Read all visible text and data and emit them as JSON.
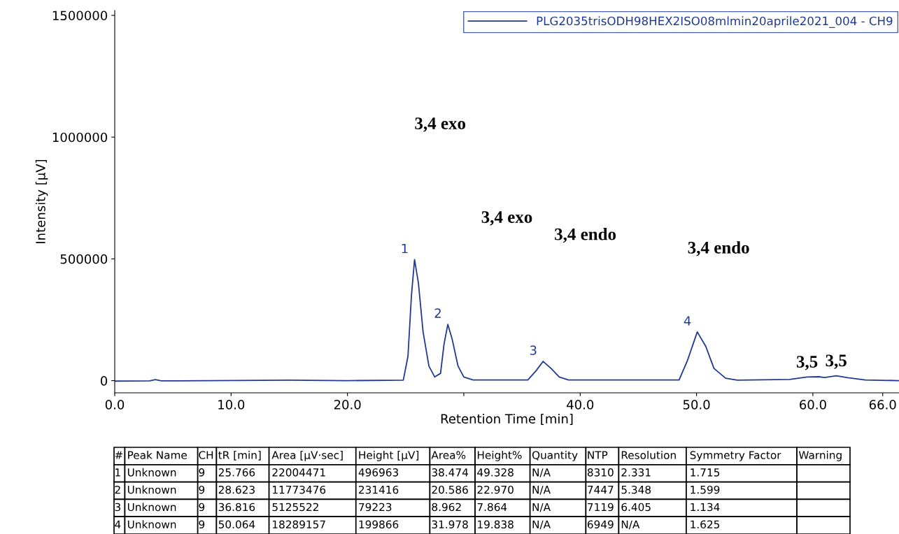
{
  "chart_data": {
    "type": "line",
    "xlabel": "Retention Time [min]",
    "ylabel": "Intensity [µV]",
    "xlim": [
      0,
      67.4
    ],
    "ylim": [
      -50000,
      1520000
    ],
    "xticks": [
      {
        "value": 0,
        "label": "0.0"
      },
      {
        "value": 10,
        "label": "10.0"
      },
      {
        "value": 20,
        "label": "20.0"
      },
      {
        "value": 30,
        "label": null
      },
      {
        "value": 40,
        "label": "40.0"
      },
      {
        "value": 50,
        "label": "50.0"
      },
      {
        "value": 60,
        "label": "60.0"
      },
      {
        "value": 66,
        "label": "66.0"
      }
    ],
    "yticks": [
      0,
      500000,
      1000000,
      1500000
    ],
    "grid": false,
    "legend": "top right",
    "marker": "none",
    "line_style": "solid",
    "series": [
      {
        "name": "PLG2035trisODH98HEX2ISO08mlmin20aprile2021_004 - CH9",
        "color": "#1f3a93",
        "x": [
          0,
          3.0,
          3.5,
          4.0,
          8,
          15,
          20,
          24.8,
          25.2,
          25.5,
          25.766,
          26.1,
          26.5,
          27.0,
          27.5,
          28.0,
          28.3,
          28.623,
          29.0,
          29.5,
          30.0,
          30.8,
          35.5,
          36.2,
          36.816,
          37.5,
          38.2,
          39.0,
          48.5,
          49.2,
          50.064,
          50.8,
          51.5,
          52.5,
          53.5,
          58.0,
          59.5,
          60.5,
          61.0,
          62.0,
          63.0,
          64.5,
          67.4
        ],
        "values": [
          -2000,
          -1000,
          4000,
          -1000,
          0,
          2000,
          0,
          2000,
          100000,
          350000,
          497000,
          400000,
          200000,
          60000,
          15000,
          30000,
          150000,
          231000,
          170000,
          60000,
          15000,
          3000,
          3000,
          40000,
          79000,
          50000,
          15000,
          3000,
          3000,
          80000,
          200000,
          140000,
          50000,
          10000,
          2000,
          5000,
          15000,
          16000,
          13000,
          20000,
          12000,
          3000,
          0
        ]
      }
    ],
    "annotations": [
      {
        "text": "1",
        "x": 25.766,
        "y": 496963
      },
      {
        "text": "2",
        "x": 28.623,
        "y": 231416
      },
      {
        "text": "3",
        "x": 36.816,
        "y": 79223
      },
      {
        "text": "4",
        "x": 50.064,
        "y": 199866
      },
      {
        "text": "3,5",
        "x": 59.5,
        "y": 15000
      },
      {
        "text": "3,5",
        "x": 62.0,
        "y": 20000
      },
      "3,4 exo",
      "3,4 exo",
      "3,4 endo",
      "3,4 endo",
      "#",
      "Peak Name",
      "CH",
      "tR [min]",
      "Area [µV·sec]",
      "Height [µV]",
      "Area%",
      "Height%",
      "Quantity",
      "NTP",
      "Resolution",
      "Symmetry Factor",
      "Warning",
      "1",
      "Unknown",
      "9",
      "25.766",
      "22004471",
      "496963",
      "38.474",
      "49.328",
      "N/A",
      "8310",
      "2.331",
      "1.715",
      "2",
      "Unknown",
      "9",
      "28.623",
      "11773476",
      "231416",
      "20.586",
      "22.970",
      "N/A",
      "7447",
      "5.348",
      "1.599",
      "3",
      "Unknown",
      "9",
      "36.816",
      "5125522",
      "79223",
      "8.962",
      "7.864",
      "N/A",
      "7119",
      "6.405",
      "1.134",
      "4",
      "Unknown",
      "9",
      "50.064",
      "18289157",
      "199866",
      "31.978",
      "19.838",
      "N/A",
      "6949",
      "N/A",
      "1.625"
    ]
  }
}
